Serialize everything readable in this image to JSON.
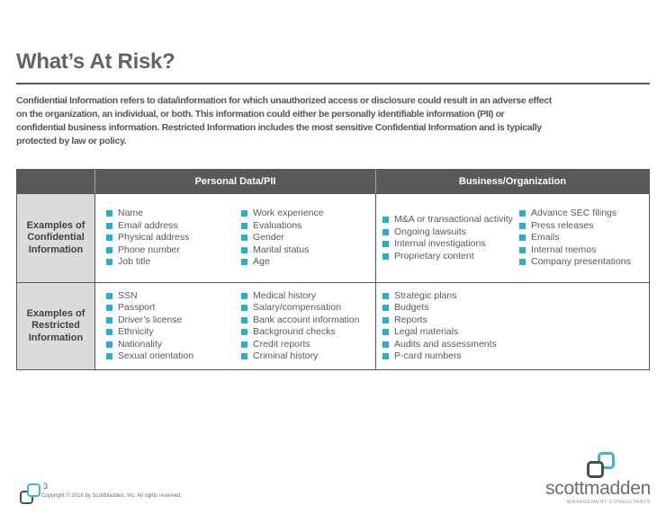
{
  "slide": {
    "title": "What’s At Risk?",
    "intro_lines": [
      "Confidential Information refers to data/information for which unauthorized access or disclosure could result in an adverse effect",
      "on the organization, an individual, or both. This information could either be personally identifiable information (PII) or",
      "confidential business information. Restricted Information includes the most sensitive Confidential Information and is typically",
      "protected by law or policy."
    ]
  },
  "table": {
    "column_headers": [
      "Personal Data/PII",
      "Business/Organization"
    ],
    "rows": [
      {
        "label": "Examples of Confidential Information",
        "personal_col1": [
          "Name",
          "Email address",
          "Physical address",
          "Phone number",
          "Job title"
        ],
        "personal_col2": [
          "Work experience",
          "Evaluations",
          "Gender",
          "Marital status",
          "Age"
        ],
        "business_col1": [
          "M&A or transactional activity",
          "Ongoing lawsuits",
          "Internal investigations",
          "Proprietary content"
        ],
        "business_col2": [
          "Advance SEC filings",
          "Press releases",
          "Emails",
          "Internal memos",
          "Company presentations"
        ]
      },
      {
        "label": "Examples of Restricted Information",
        "personal_col1": [
          "SSN",
          "Passport",
          "Driver’s license",
          "Ethnicity",
          "Nationality",
          "Sexual orientation"
        ],
        "personal_col2": [
          "Medical history",
          "Salary/compensation",
          "Bank account information",
          "Background checks",
          "Credit reports",
          "Criminal history"
        ],
        "business_col1": [
          "Strategic plans",
          "Budgets",
          "Reports",
          "Legal materials",
          "Audits and assessments",
          "P-card numbers"
        ],
        "business_col2": []
      }
    ]
  },
  "footer": {
    "page_number": "3",
    "copyright": "Copyright © 2016 by ScottMadden, Inc. All rights reserved.",
    "logo_text": "scottmadden",
    "logo_tagline": "MANAGEMENT CONSULTANTS"
  },
  "colors": {
    "accent_cyan": "#2BADCE",
    "header_gray": "#58595B",
    "label_bg": "#DADBDC",
    "text_gray": "#58595B"
  }
}
